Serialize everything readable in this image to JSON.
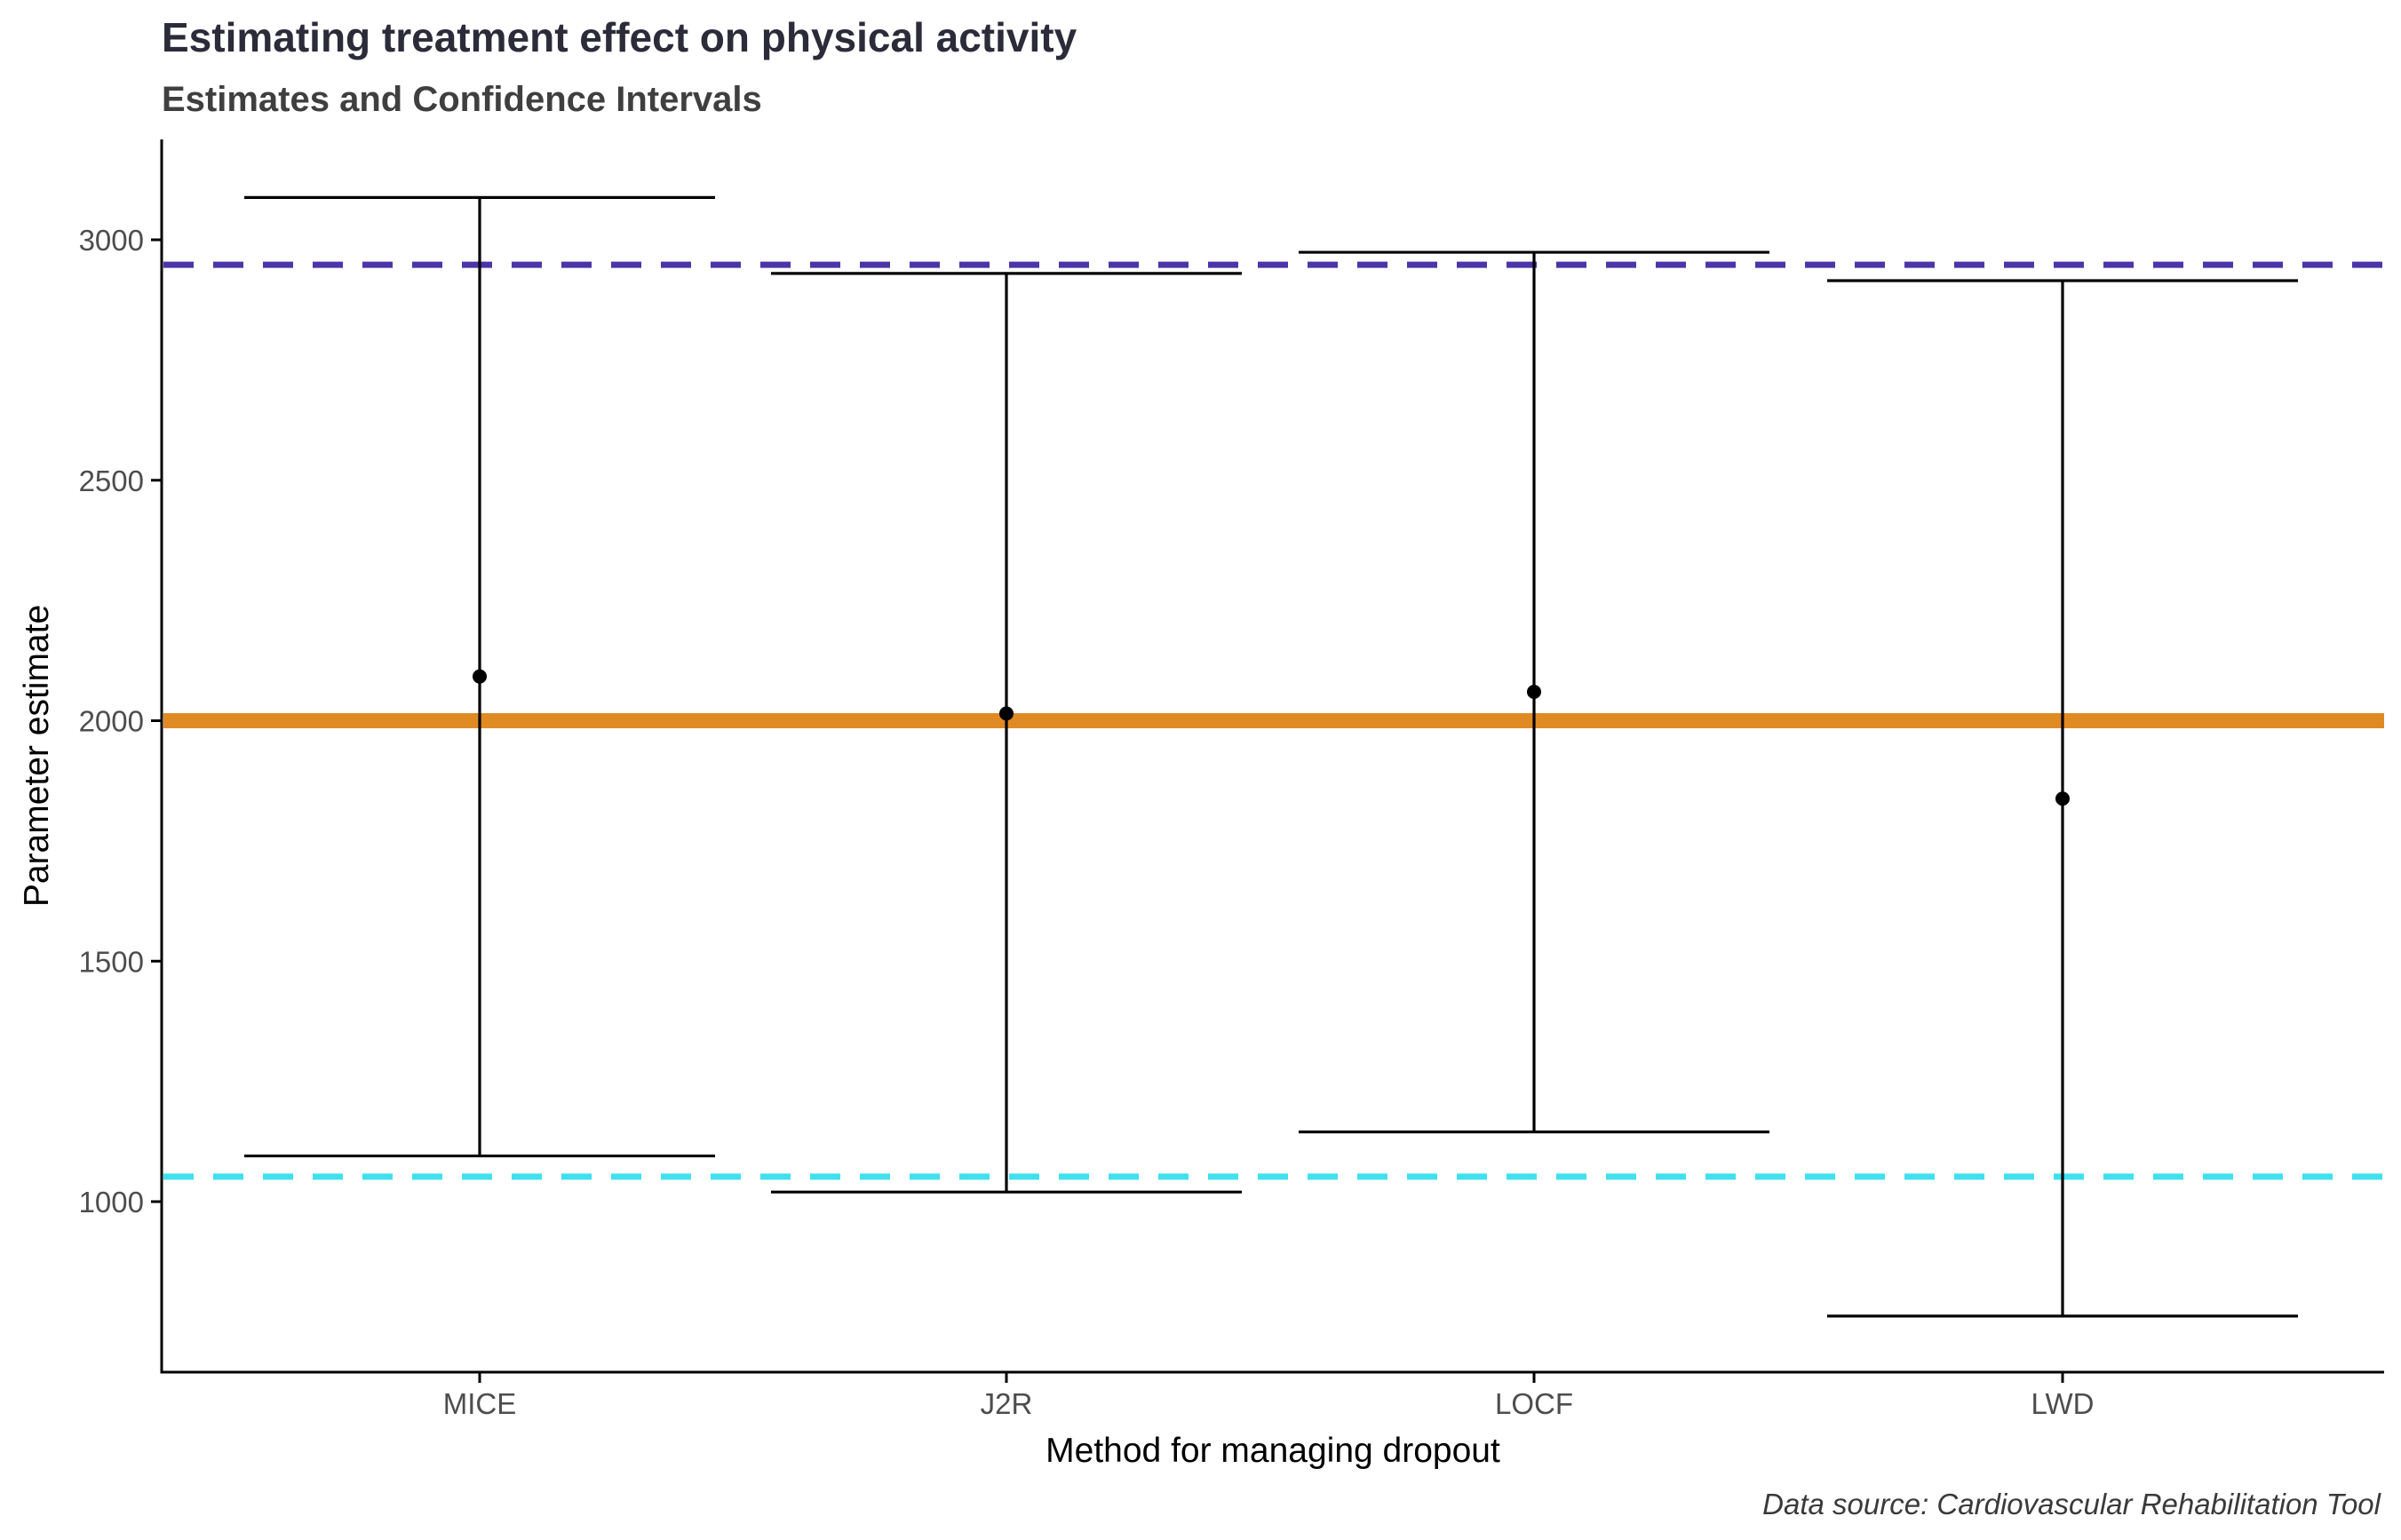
{
  "chart_data": {
    "type": "errorbar",
    "title": "Estimating treatment effect on physical activity",
    "subtitle": "Estimates and Confidence Intervals",
    "xlabel": "Method for managing dropout",
    "ylabel": "Parameter estimate",
    "caption": "Data source: Cardiovascular Rehabilitation Tool",
    "categories": [
      "MICE",
      "J2R",
      "LOCF",
      "LWD"
    ],
    "estimates": [
      2092,
      2015,
      2060,
      1838
    ],
    "lower": [
      1095,
      1020,
      1145,
      762
    ],
    "upper": [
      3088,
      2930,
      2974,
      2915
    ],
    "reference_lines": [
      {
        "value": 2000,
        "style": "solid",
        "color": "#E08A24"
      },
      {
        "value": 2948,
        "style": "dashed",
        "color": "#4B35A8"
      },
      {
        "value": 1052,
        "style": "dashed",
        "color": "#3FE0F0"
      }
    ],
    "yticks": [
      1000,
      1500,
      2000,
      2500,
      3000
    ],
    "ylim": [
      650,
      3200
    ],
    "grid": false,
    "legend": "none"
  }
}
